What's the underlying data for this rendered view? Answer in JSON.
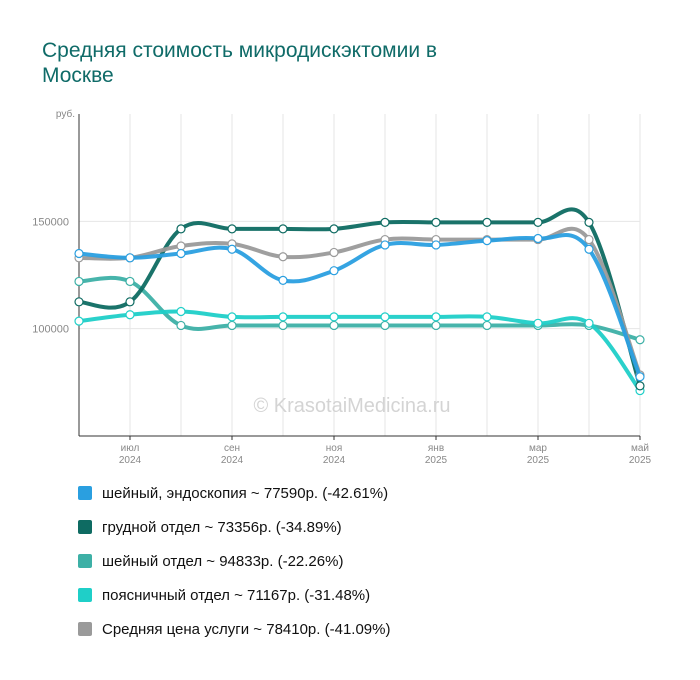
{
  "chart_data": {
    "type": "line",
    "title": "Средняя стоимость микродискэктомии в Москве",
    "ylabel": "руб.",
    "ylim": [
      50000,
      200000
    ],
    "y_ticks": [
      {
        "value": 100000,
        "label": "100000"
      },
      {
        "value": 150000,
        "label": "150000"
      }
    ],
    "x_points": [
      "2024-06",
      "2024-07",
      "2024-08",
      "2024-09",
      "2024-10",
      "2024-11",
      "2024-12",
      "2025-01",
      "2025-02",
      "2025-03",
      "2025-04",
      "2025-05"
    ],
    "x_tick_labels": [
      {
        "index": 1,
        "month": "июл",
        "year": "2024"
      },
      {
        "index": 3,
        "month": "сен",
        "year": "2024"
      },
      {
        "index": 5,
        "month": "ноя",
        "year": "2024"
      },
      {
        "index": 7,
        "month": "янв",
        "year": "2025"
      },
      {
        "index": 9,
        "month": "мар",
        "year": "2025"
      },
      {
        "index": 11,
        "month": "май",
        "year": "2025"
      }
    ],
    "watermark": "© KrasotaiMedicina.ru",
    "grid": true,
    "legend_position": "bottom",
    "series": [
      {
        "name": "шейный, эндоскопия",
        "legend": "шейный, эндоскопия ~ 77590р. (-42.61%)",
        "color": "#2a9fe0",
        "values": [
          135000,
          133000,
          135000,
          137000,
          122500,
          127000,
          139000,
          139000,
          141000,
          142000,
          137000,
          77590
        ]
      },
      {
        "name": "грудной отдел",
        "legend": "грудной отдел ~ 73356р. (-34.89%)",
        "color": "#0e6b62",
        "values": [
          112500,
          112500,
          146500,
          146500,
          146500,
          146500,
          149500,
          149500,
          149500,
          149500,
          149500,
          73356
        ]
      },
      {
        "name": "шейный отдел",
        "legend": "шейный отдел ~ 94833р. (-22.26%)",
        "color": "#3db0a6",
        "values": [
          122000,
          122000,
          101500,
          101500,
          101500,
          101500,
          101500,
          101500,
          101500,
          101500,
          101500,
          94833
        ]
      },
      {
        "name": "поясничный отдел",
        "legend": "поясничный отдел ~ 71167р. (-31.48%)",
        "color": "#1fcfc8",
        "values": [
          103500,
          106500,
          108000,
          105500,
          105500,
          105500,
          105500,
          105500,
          105500,
          102500,
          102500,
          71167
        ]
      },
      {
        "name": "Средняя цена услуги",
        "legend": "Средняя цена услуги ~ 78410р. (-41.09%)",
        "color": "#9a9a9a",
        "values": [
          133000,
          133000,
          138500,
          139500,
          133500,
          135500,
          141500,
          141500,
          141500,
          141500,
          141500,
          78410
        ]
      }
    ]
  }
}
